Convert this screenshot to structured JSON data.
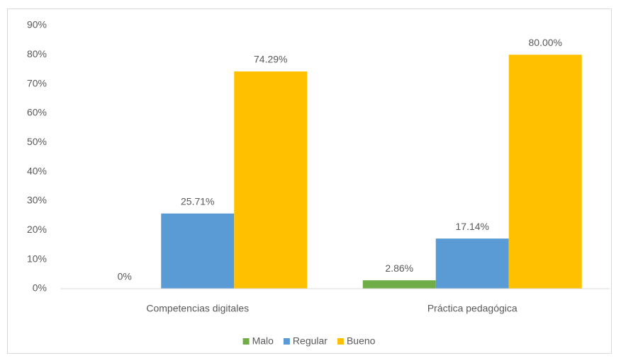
{
  "chart_data": {
    "type": "bar",
    "categories": [
      "Competencias digitales",
      "Práctica pedagógica"
    ],
    "series": [
      {
        "name": "Malo",
        "color": "#70ad47",
        "values": [
          0,
          2.86
        ],
        "value_labels": [
          "0%",
          "2.86%"
        ]
      },
      {
        "name": "Regular",
        "color": "#5b9bd5",
        "values": [
          25.71,
          17.14
        ],
        "value_labels": [
          "25.71%",
          "17.14%"
        ]
      },
      {
        "name": "Bueno",
        "color": "#ffc000",
        "values": [
          74.29,
          80.0
        ],
        "value_labels": [
          "74.29%",
          "80.00%"
        ]
      }
    ],
    "ylim": [
      0,
      90
    ],
    "yticks": [
      {
        "value": 0,
        "label": "0%"
      },
      {
        "value": 10,
        "label": "10%"
      },
      {
        "value": 20,
        "label": "20%"
      },
      {
        "value": 30,
        "label": "30%"
      },
      {
        "value": 40,
        "label": "40%"
      },
      {
        "value": 50,
        "label": "50%"
      },
      {
        "value": 60,
        "label": "60%"
      },
      {
        "value": 70,
        "label": "70%"
      },
      {
        "value": 80,
        "label": "80%"
      },
      {
        "value": 90,
        "label": "90%"
      }
    ],
    "grid": false,
    "legend": "bottom"
  }
}
